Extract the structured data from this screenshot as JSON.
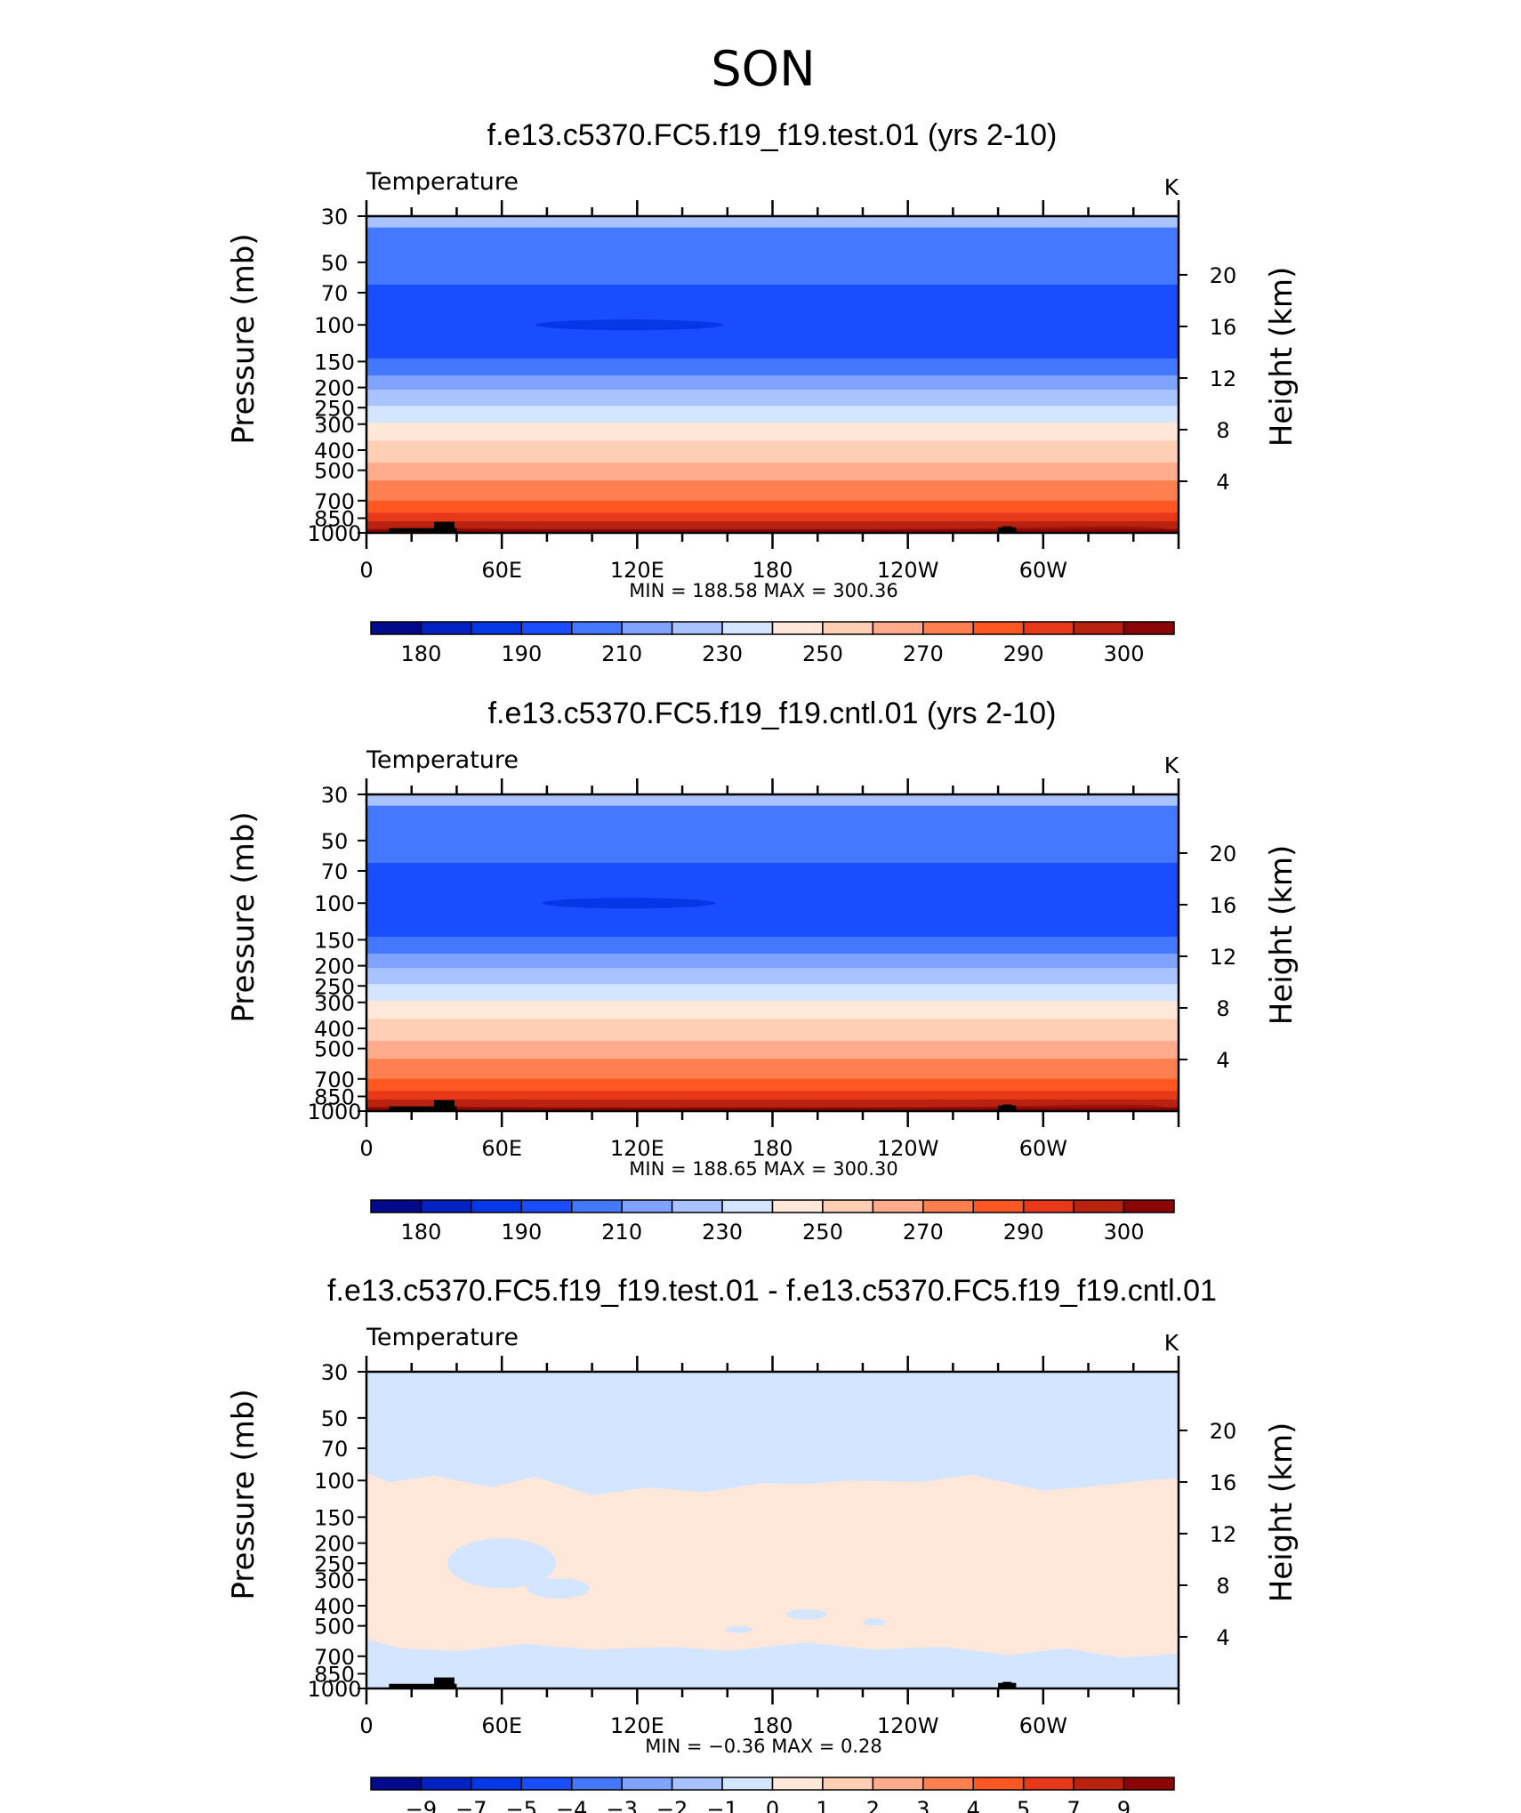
{
  "suptitle": "SON",
  "colors": {
    "temperature_fills": [
      "#020a8c",
      "#0320c0",
      "#0537e6",
      "#1a4dff",
      "#4479ff",
      "#7fa3ff",
      "#a9c3ff",
      "#d4e5ff",
      "#ffe8d9",
      "#ffcfb5",
      "#ffab8c",
      "#ff7f50",
      "#ff5722",
      "#e8381a",
      "#b8220f",
      "#8a0505"
    ],
    "difference_fills": [
      "#d4e5ff",
      "#ffe8d9"
    ],
    "topography": "#000000"
  },
  "chart_data": [
    {
      "type": "heatmap",
      "title": "f.e13.c5370.FC5.f19_f19.test.01 (yrs 2-10)",
      "field_label": "Temperature",
      "units": "K",
      "xlabel": "",
      "ylabel": "Pressure (mb)",
      "ylabel_right": "Height (km)",
      "x_ticks": [
        "0",
        "60E",
        "120E",
        "180",
        "120W",
        "60W"
      ],
      "x_range": [
        0,
        360
      ],
      "y_ticks": [
        "30",
        "50",
        "70",
        "100",
        "150",
        "200",
        "250",
        "300",
        "400",
        "500",
        "700",
        "850",
        "1000"
      ],
      "y_range_mb": [
        1000,
        30
      ],
      "y_scale": "log",
      "right_ticks": [
        "20",
        "16",
        "12",
        "8",
        "4"
      ],
      "min_max": "MIN  =  188.58    MAX  =  300.36",
      "min": 188.58,
      "max": 300.36,
      "colorbar_labels": [
        "180",
        "190",
        "210",
        "230",
        "250",
        "270",
        "290",
        "300"
      ],
      "band_levels_mb": [
        30,
        34,
        64,
        145,
        175,
        205,
        245,
        295,
        360,
        460,
        560,
        700,
        800,
        880,
        960,
        990,
        1000
      ],
      "band_colors": [
        6,
        4,
        3,
        4,
        5,
        6,
        7,
        8,
        9,
        10,
        11,
        12,
        13,
        14,
        15
      ],
      "min_blob": {
        "lon_range": [
          75,
          158
        ],
        "p_mb": 100
      }
    },
    {
      "type": "heatmap",
      "title": "f.e13.c5370.FC5.f19_f19.cntl.01 (yrs 2-10)",
      "field_label": "Temperature",
      "units": "K",
      "xlabel": "",
      "ylabel": "Pressure (mb)",
      "ylabel_right": "Height (km)",
      "x_ticks": [
        "0",
        "60E",
        "120E",
        "180",
        "120W",
        "60W"
      ],
      "x_range": [
        0,
        360
      ],
      "y_ticks": [
        "30",
        "50",
        "70",
        "100",
        "150",
        "200",
        "250",
        "300",
        "400",
        "500",
        "700",
        "850",
        "1000"
      ],
      "y_range_mb": [
        1000,
        30
      ],
      "y_scale": "log",
      "right_ticks": [
        "20",
        "16",
        "12",
        "8",
        "4"
      ],
      "min_max": "MIN  =  188.65    MAX  =  300.30",
      "min": 188.65,
      "max": 300.3,
      "colorbar_labels": [
        "180",
        "190",
        "210",
        "230",
        "250",
        "270",
        "290",
        "300"
      ],
      "band_levels_mb": [
        30,
        34,
        64,
        145,
        175,
        205,
        245,
        295,
        360,
        460,
        560,
        700,
        800,
        880,
        960,
        990,
        1000
      ],
      "band_colors": [
        6,
        4,
        3,
        4,
        5,
        6,
        7,
        8,
        9,
        10,
        11,
        12,
        13,
        14,
        15
      ],
      "min_blob": {
        "lon_range": [
          78,
          155
        ],
        "p_mb": 100
      }
    },
    {
      "type": "heatmap",
      "title": "f.e13.c5370.FC5.f19_f19.test.01 - f.e13.c5370.FC5.f19_f19.cntl.01",
      "field_label": "Temperature",
      "units": "K",
      "xlabel": "",
      "ylabel": "Pressure (mb)",
      "ylabel_right": "Height (km)",
      "x_ticks": [
        "0",
        "60E",
        "120E",
        "180",
        "120W",
        "60W"
      ],
      "x_range": [
        0,
        360
      ],
      "y_ticks": [
        "30",
        "50",
        "70",
        "100",
        "150",
        "200",
        "250",
        "300",
        "400",
        "500",
        "700",
        "850",
        "1000"
      ],
      "y_range_mb": [
        1000,
        30
      ],
      "y_scale": "log",
      "right_ticks": [
        "20",
        "16",
        "12",
        "8",
        "4"
      ],
      "min_max": "MIN  =   −0.36    MAX  =     0.28",
      "min": -0.36,
      "max": 0.28,
      "colorbar_labels": [
        "−9",
        "−7",
        "−5",
        "−4",
        "−3",
        "−2",
        "−1",
        "0",
        "1",
        "2",
        "3",
        "4",
        "5",
        "7",
        "9"
      ],
      "positive_region": {
        "upper_boundary": [
          [
            0,
            92
          ],
          [
            10,
            102
          ],
          [
            30,
            95
          ],
          [
            55,
            108
          ],
          [
            75,
            96
          ],
          [
            100,
            118
          ],
          [
            125,
            108
          ],
          [
            150,
            114
          ],
          [
            175,
            103
          ],
          [
            195,
            104
          ],
          [
            215,
            100
          ],
          [
            245,
            102
          ],
          [
            268,
            94
          ],
          [
            300,
            112
          ],
          [
            325,
            106
          ],
          [
            345,
            100
          ],
          [
            360,
            98
          ]
        ],
        "lower_boundary": [
          [
            0,
            580
          ],
          [
            15,
            640
          ],
          [
            40,
            660
          ],
          [
            70,
            610
          ],
          [
            100,
            650
          ],
          [
            135,
            630
          ],
          [
            160,
            660
          ],
          [
            195,
            600
          ],
          [
            225,
            650
          ],
          [
            255,
            630
          ],
          [
            285,
            690
          ],
          [
            310,
            640
          ],
          [
            335,
            710
          ],
          [
            360,
            680
          ]
        ]
      },
      "negative_patches": [
        {
          "lon": 60,
          "p_mb": 250,
          "dlon": 24,
          "dp_ratio": 1.32
        },
        {
          "lon": 85,
          "p_mb": 330,
          "dlon": 14,
          "dp_ratio": 1.12
        },
        {
          "lon": 195,
          "p_mb": 440,
          "dlon": 9,
          "dp_ratio": 1.06
        },
        {
          "lon": 225,
          "p_mb": 480,
          "dlon": 5,
          "dp_ratio": 1.03
        },
        {
          "lon": 165,
          "p_mb": 520,
          "dlon": 6,
          "dp_ratio": 1.04
        }
      ]
    }
  ],
  "topography": {
    "mountains": [
      {
        "lon_range": [
          10,
          40
        ],
        "top_mb": 950,
        "peak_mb": 885,
        "peak_lon": [
          30,
          39
        ]
      },
      {
        "lon_range": [
          98,
          128
        ],
        "top_mb": 995,
        "peak_mb": 992,
        "peak_lon": [
          100,
          126
        ]
      },
      {
        "lon_range": [
          280,
          288
        ],
        "top_mb": 940,
        "peak_mb": 930,
        "peak_lon": [
          282,
          286
        ]
      }
    ]
  }
}
